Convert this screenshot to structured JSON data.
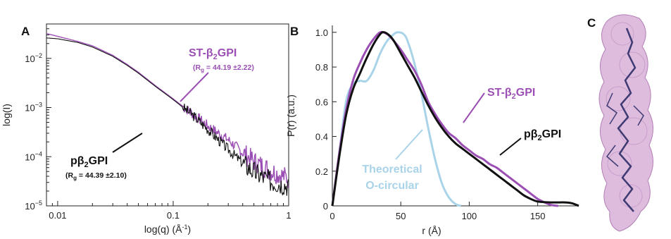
{
  "panels": {
    "a": "A",
    "b": "B",
    "c": "C"
  },
  "colors": {
    "st": "#9b4fb4",
    "p": "#111111",
    "theoretical": "#a9d3e8",
    "molecule_fill": "#d3a6d3",
    "molecule_ribbon": "#3e3a72"
  },
  "chart_data": [
    {
      "type": "line",
      "panel": "A",
      "xscale": "log",
      "yscale": "log",
      "xlim": [
        0.008,
        1
      ],
      "ylim": [
        1e-05,
        0.05
      ],
      "xlabel_main": "log(q) (Å",
      "xlabel_sup": "-1",
      "xlabel_end": ")",
      "ylabel": "log(I)",
      "xticks": [
        {
          "v": 0.01,
          "label": "0.01"
        },
        {
          "v": 0.1,
          "label": "0.1"
        },
        {
          "v": 1,
          "label": "1"
        }
      ],
      "yticks": [
        {
          "v": 1e-05,
          "base": "10",
          "exp": "−5"
        },
        {
          "v": 0.0001,
          "base": "10",
          "exp": "−4"
        },
        {
          "v": 0.001,
          "base": "10",
          "exp": "−3"
        },
        {
          "v": 0.01,
          "base": "10",
          "exp": "−2"
        }
      ],
      "series": [
        {
          "key": "st",
          "label_main": "ST-β",
          "label_sub": "2",
          "label_end": "GPI",
          "rg_main": "(R",
          "rg_sub": "g",
          "rg_end": " = 44.19 ±2.22)",
          "points": [
            [
              0.008,
              0.032
            ],
            [
              0.01,
              0.028
            ],
            [
              0.015,
              0.022
            ],
            [
              0.02,
              0.018
            ],
            [
              0.03,
              0.0115
            ],
            [
              0.04,
              0.0075
            ],
            [
              0.05,
              0.0052
            ],
            [
              0.07,
              0.0028
            ],
            [
              0.1,
              0.0015
            ],
            [
              0.15,
              0.00072
            ],
            [
              0.2,
              0.00042
            ],
            [
              0.3,
              0.00022
            ],
            [
              0.4,
              0.00012
            ],
            [
              0.5,
              8e-05
            ],
            [
              0.7,
              5.2e-05
            ],
            [
              0.9,
              4e-05
            ],
            [
              0.99,
              3.6e-05
            ]
          ]
        },
        {
          "key": "p",
          "label_main": "pβ",
          "label_sub": "2",
          "label_end": "GPI",
          "rg_main": "(R",
          "rg_sub": "g",
          "rg_end": " = 44.39 ±2.10)",
          "points": [
            [
              0.008,
              0.026
            ],
            [
              0.01,
              0.025
            ],
            [
              0.015,
              0.021
            ],
            [
              0.02,
              0.017
            ],
            [
              0.03,
              0.011
            ],
            [
              0.04,
              0.0072
            ],
            [
              0.05,
              0.005
            ],
            [
              0.07,
              0.0027
            ],
            [
              0.1,
              0.00145
            ],
            [
              0.15,
              0.00068
            ],
            [
              0.2,
              0.00036
            ],
            [
              0.3,
              0.00014
            ],
            [
              0.4,
              7.5e-05
            ],
            [
              0.5,
              5e-05
            ],
            [
              0.7,
              3.2e-05
            ],
            [
              0.9,
              2.8e-05
            ],
            [
              0.99,
              2.6e-05
            ]
          ]
        }
      ]
    },
    {
      "type": "line",
      "panel": "B",
      "xlim": [
        0,
        180
      ],
      "ylim": [
        0,
        1.04
      ],
      "xlabel": "r (Å)",
      "ylabel": "P(r) (a.u.)",
      "xticks": [
        {
          "v": 0,
          "label": "0"
        },
        {
          "v": 50,
          "label": "50"
        },
        {
          "v": 100,
          "label": "100"
        },
        {
          "v": 150,
          "label": "150"
        }
      ],
      "yticks": [
        {
          "v": 0,
          "label": "0"
        },
        {
          "v": 0.2,
          "label": "0.2"
        },
        {
          "v": 0.4,
          "label": "0.4"
        },
        {
          "v": 0.6,
          "label": "0.6"
        },
        {
          "v": 0.8,
          "label": "0.8"
        },
        {
          "v": 1.0,
          "label": "1.0"
        }
      ],
      "series": [
        {
          "key": "theoretical",
          "label_line1": "Theoretical",
          "label_line2": "O-circular",
          "points": [
            [
              0,
              0
            ],
            [
              5,
              0.3
            ],
            [
              10,
              0.6
            ],
            [
              15,
              0.7
            ],
            [
              20,
              0.72
            ],
            [
              25,
              0.72
            ],
            [
              30,
              0.78
            ],
            [
              35,
              0.88
            ],
            [
              40,
              0.95
            ],
            [
              45,
              0.99
            ],
            [
              48,
              1.0
            ],
            [
              52,
              0.99
            ],
            [
              55,
              0.95
            ],
            [
              60,
              0.82
            ],
            [
              65,
              0.65
            ],
            [
              70,
              0.45
            ],
            [
              75,
              0.27
            ],
            [
              80,
              0.13
            ],
            [
              85,
              0.05
            ],
            [
              90,
              0.01
            ],
            [
              94,
              0
            ]
          ]
        },
        {
          "key": "st",
          "label_main": "ST-β",
          "label_sub": "2",
          "label_end": "GPI",
          "points": [
            [
              0,
              0
            ],
            [
              5,
              0.3
            ],
            [
              10,
              0.55
            ],
            [
              15,
              0.72
            ],
            [
              20,
              0.82
            ],
            [
              25,
              0.9
            ],
            [
              30,
              0.96
            ],
            [
              35,
              1.0
            ],
            [
              40,
              0.99
            ],
            [
              45,
              0.95
            ],
            [
              50,
              0.9
            ],
            [
              55,
              0.84
            ],
            [
              60,
              0.78
            ],
            [
              65,
              0.7
            ],
            [
              70,
              0.6
            ],
            [
              75,
              0.53
            ],
            [
              80,
              0.47
            ],
            [
              85,
              0.42
            ],
            [
              90,
              0.39
            ],
            [
              95,
              0.35
            ],
            [
              100,
              0.32
            ],
            [
              105,
              0.29
            ],
            [
              110,
              0.27
            ],
            [
              115,
              0.24
            ],
            [
              120,
              0.22
            ],
            [
              125,
              0.19
            ],
            [
              130,
              0.16
            ],
            [
              135,
              0.13
            ],
            [
              140,
              0.1
            ],
            [
              145,
              0.07
            ],
            [
              150,
              0.04
            ],
            [
              155,
              0.02
            ],
            [
              160,
              0.005
            ],
            [
              165,
              0
            ]
          ]
        },
        {
          "key": "p",
          "label_main": "pβ",
          "label_sub": "2",
          "label_end": "GPI",
          "points": [
            [
              0,
              0
            ],
            [
              5,
              0.28
            ],
            [
              10,
              0.52
            ],
            [
              15,
              0.67
            ],
            [
              20,
              0.76
            ],
            [
              25,
              0.85
            ],
            [
              30,
              0.93
            ],
            [
              35,
              0.99
            ],
            [
              38,
              1.0
            ],
            [
              42,
              0.98
            ],
            [
              45,
              0.95
            ],
            [
              50,
              0.88
            ],
            [
              55,
              0.81
            ],
            [
              60,
              0.74
            ],
            [
              65,
              0.66
            ],
            [
              70,
              0.58
            ],
            [
              75,
              0.51
            ],
            [
              80,
              0.45
            ],
            [
              85,
              0.4
            ],
            [
              90,
              0.36
            ],
            [
              95,
              0.33
            ],
            [
              100,
              0.3
            ],
            [
              105,
              0.27
            ],
            [
              110,
              0.24
            ],
            [
              115,
              0.21
            ],
            [
              120,
              0.18
            ],
            [
              125,
              0.15
            ],
            [
              130,
              0.12
            ],
            [
              135,
              0.09
            ],
            [
              140,
              0.06
            ],
            [
              145,
              0.04
            ],
            [
              150,
              0.025
            ],
            [
              160,
              0.02
            ],
            [
              170,
              0.02
            ],
            [
              175,
              0.015
            ],
            [
              180,
              0
            ]
          ]
        }
      ]
    }
  ]
}
